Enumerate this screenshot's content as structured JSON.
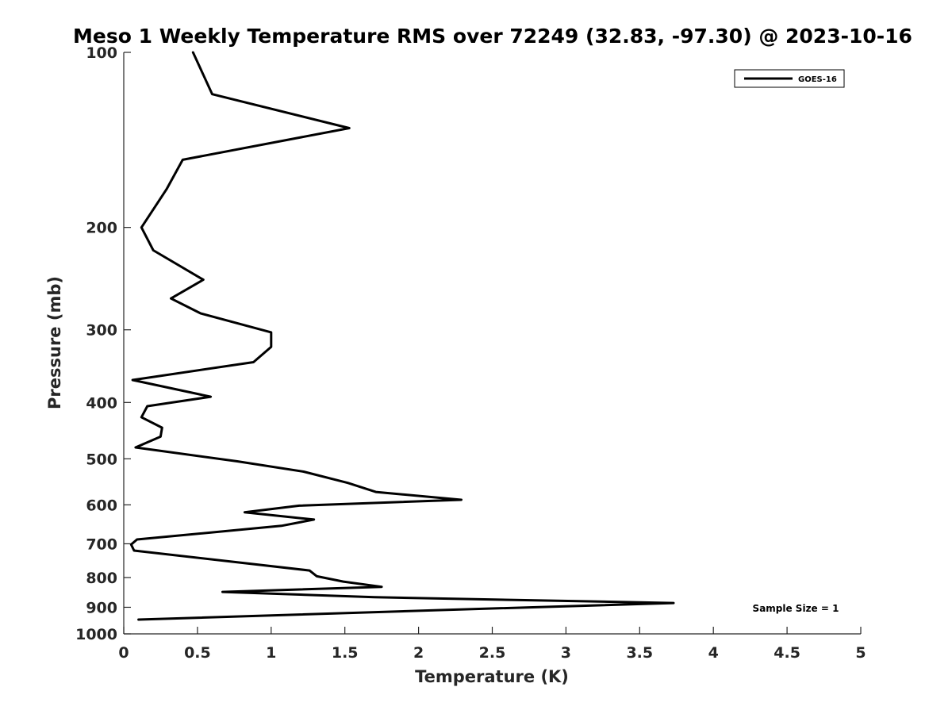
{
  "chart_data": {
    "type": "line",
    "title": "Meso 1 Weekly Temperature RMS over 72249 (32.83, -97.30) @ 2023-10-16",
    "xlabel": "Temperature (K)",
    "ylabel": "Pressure (mb)",
    "xlim": [
      0,
      5
    ],
    "ylim": [
      100,
      1000
    ],
    "y_scale": "log",
    "y_reversed": true,
    "x_ticks": [
      "0",
      "0.5",
      "1",
      "1.5",
      "2",
      "2.5",
      "3",
      "3.5",
      "4",
      "4.5",
      "5"
    ],
    "y_ticks": [
      "100",
      "200",
      "300",
      "400",
      "500",
      "600",
      "700",
      "800",
      "900",
      "1000"
    ],
    "grid": false,
    "legend_position": "top-right",
    "series": [
      {
        "name": "GOES-16",
        "color": "#000000",
        "x": [
          0.47,
          0.6,
          1.53,
          0.4,
          0.29,
          0.12,
          0.2,
          0.54,
          0.32,
          0.52,
          1.0,
          1.0,
          0.88,
          0.06,
          0.59,
          0.16,
          0.12,
          0.26,
          0.25,
          0.08,
          0.77,
          1.22,
          1.52,
          1.71,
          2.29,
          1.19,
          0.82,
          1.29,
          1.07,
          0.09,
          0.05,
          0.07,
          1.26,
          1.31,
          1.49,
          1.75,
          0.67,
          1.7,
          3.73,
          2.15,
          0.1
        ],
        "y": [
          100,
          118,
          135,
          153,
          172,
          200,
          219,
          246,
          265,
          281,
          303,
          321,
          341,
          366,
          391,
          406,
          424,
          442,
          458,
          478,
          505,
          526,
          550,
          570,
          588,
          602,
          618,
          636,
          652,
          688,
          702,
          719,
          778,
          796,
          813,
          830,
          847,
          865,
          885,
          910,
          945
        ]
      }
    ],
    "annotation": "Sample Size = 1"
  }
}
